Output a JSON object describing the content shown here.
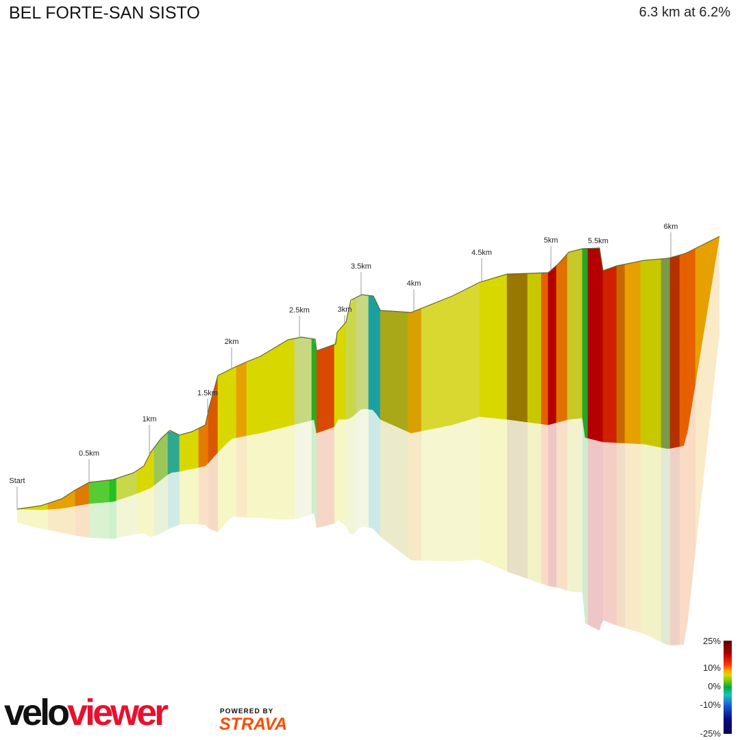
{
  "header": {
    "title": "BEL FORTE-SAN SISTO",
    "summary": "6.3 km at 6.2%"
  },
  "chart_data": {
    "type": "area",
    "title": "BEL FORTE-SAN SISTO",
    "km_markers": [
      "Start",
      "0.5km",
      "1km",
      "1.5km",
      "2km",
      "2.5km",
      "3km",
      "3.5km",
      "4km",
      "4.5km",
      "5km",
      "5.5km",
      "6km"
    ],
    "distance_km": [
      0,
      0.5,
      1,
      1.5,
      2,
      2.5,
      3,
      3.5,
      4,
      4.5,
      5,
      5.5,
      6
    ],
    "gradient_legend": {
      "ticks": [
        "25%",
        "10%",
        "0%",
        "-10%",
        "-25%"
      ],
      "colors": [
        "#5a0000",
        "#b40000",
        "#ff3b00",
        "#ffa300",
        "#d8d800",
        "#00aa44",
        "#19c4bf",
        "#1a5ad6",
        "#0a0a86"
      ]
    }
  },
  "branding": {
    "logo_part1": "velo",
    "logo_part2": "viewer",
    "powered_by": "POWERED BY",
    "strava": "STRAVA"
  }
}
